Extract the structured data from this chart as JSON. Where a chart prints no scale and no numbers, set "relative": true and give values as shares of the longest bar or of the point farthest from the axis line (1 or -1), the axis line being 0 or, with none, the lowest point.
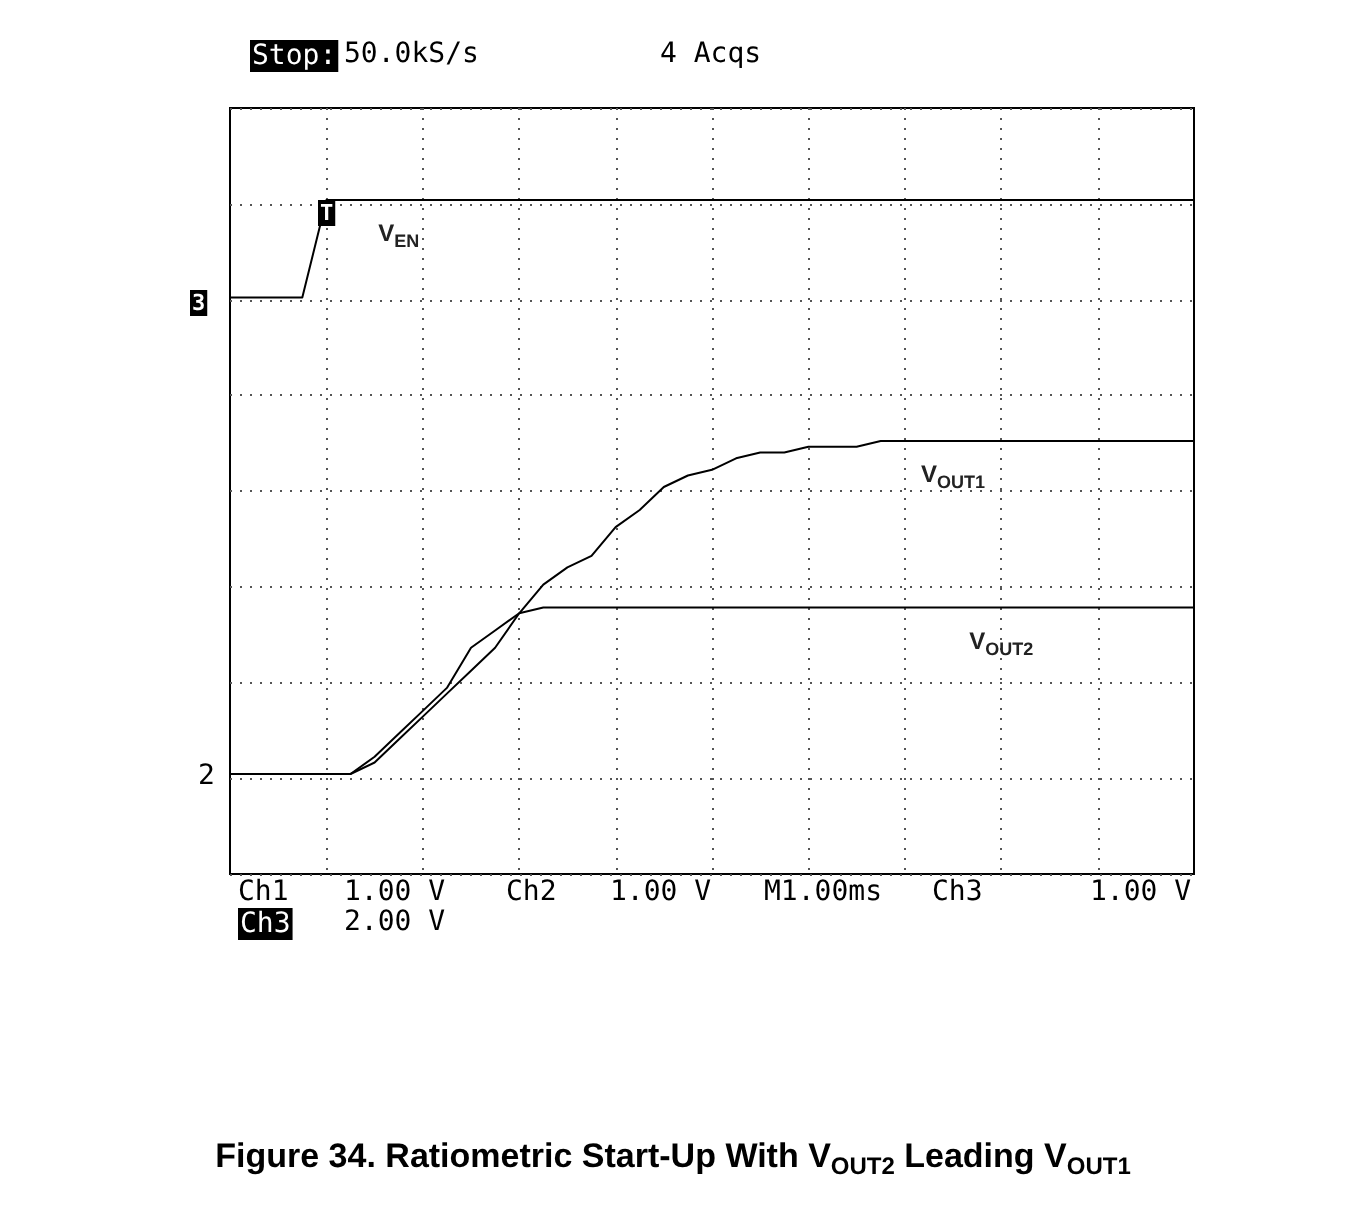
{
  "chart_data": {
    "type": "line",
    "relative": true,
    "title": "Figure 34. Ratiometric Start-Up With V$_{OUT2}$ Leading V$_{OUT1}$",
    "categories": [
      null,
      null,
      null,
      null,
      null,
      null,
      null,
      null,
      null,
      null,
      null,
      null,
      null,
      null,
      null,
      null,
      null,
      null,
      null,
      null,
      null,
      null,
      null,
      null,
      null,
      null,
      null,
      null,
      null,
      null,
      null,
      null,
      null,
      null,
      null,
      null,
      null,
      null,
      null,
      null,
      null
    ],
    "series": [
      {
        "name": "V$_{EN}$",
        "color": "#000000",
        "values": [
          0.83,
          0.83,
          0.83,
          0.83,
          1,
          1,
          1,
          1,
          1,
          1,
          1,
          1,
          1,
          1,
          1,
          1,
          1,
          1,
          1,
          1,
          1,
          1,
          1,
          1,
          1,
          1,
          1,
          1,
          1,
          1,
          1,
          1,
          1,
          1,
          1,
          1,
          1,
          1,
          1,
          1,
          1
        ]
      },
      {
        "name": "V$_{OUT1}$",
        "color": "#000000",
        "values": [
          0,
          0,
          0,
          0,
          0,
          0,
          0.02,
          0.06,
          0.1,
          0.14,
          0.18,
          0.22,
          0.28,
          0.33,
          0.36,
          0.38,
          0.43,
          0.46,
          0.5,
          0.52,
          0.53,
          0.55,
          0.56,
          0.56,
          0.57,
          0.57,
          0.57,
          0.58,
          0.58,
          0.58,
          0.58,
          0.58,
          0.58,
          0.58,
          0.58,
          0.58,
          0.58,
          0.58,
          0.58,
          0.58,
          0.58
        ]
      },
      {
        "name": "V$_{OUT2}$",
        "color": "#000000",
        "values": [
          0,
          0,
          0,
          0,
          0,
          0,
          0.03,
          0.07,
          0.11,
          0.15,
          0.22,
          0.25,
          0.28,
          0.29,
          0.29,
          0.29,
          0.29,
          0.29,
          0.29,
          0.29,
          0.29,
          0.29,
          0.29,
          0.29,
          0.29,
          0.29,
          0.29,
          0.29,
          0.29,
          0.29,
          0.29,
          0.29,
          0.29,
          0.29,
          0.29,
          0.29,
          0.29,
          0.29,
          0.29,
          0.29,
          0.29
        ]
      }
    ],
    "grid": true,
    "marker": "none",
    "annotations": [
      "Stop:",
      "50.0kS/s",
      "4 Acqs",
      "Ch1",
      "1.00 V",
      "Ch2",
      "1.00 V",
      "M1.00ms",
      "Ch3",
      "1.00 V",
      "Ch3",
      "2.00 V",
      "3",
      "2",
      "T"
    ]
  }
}
